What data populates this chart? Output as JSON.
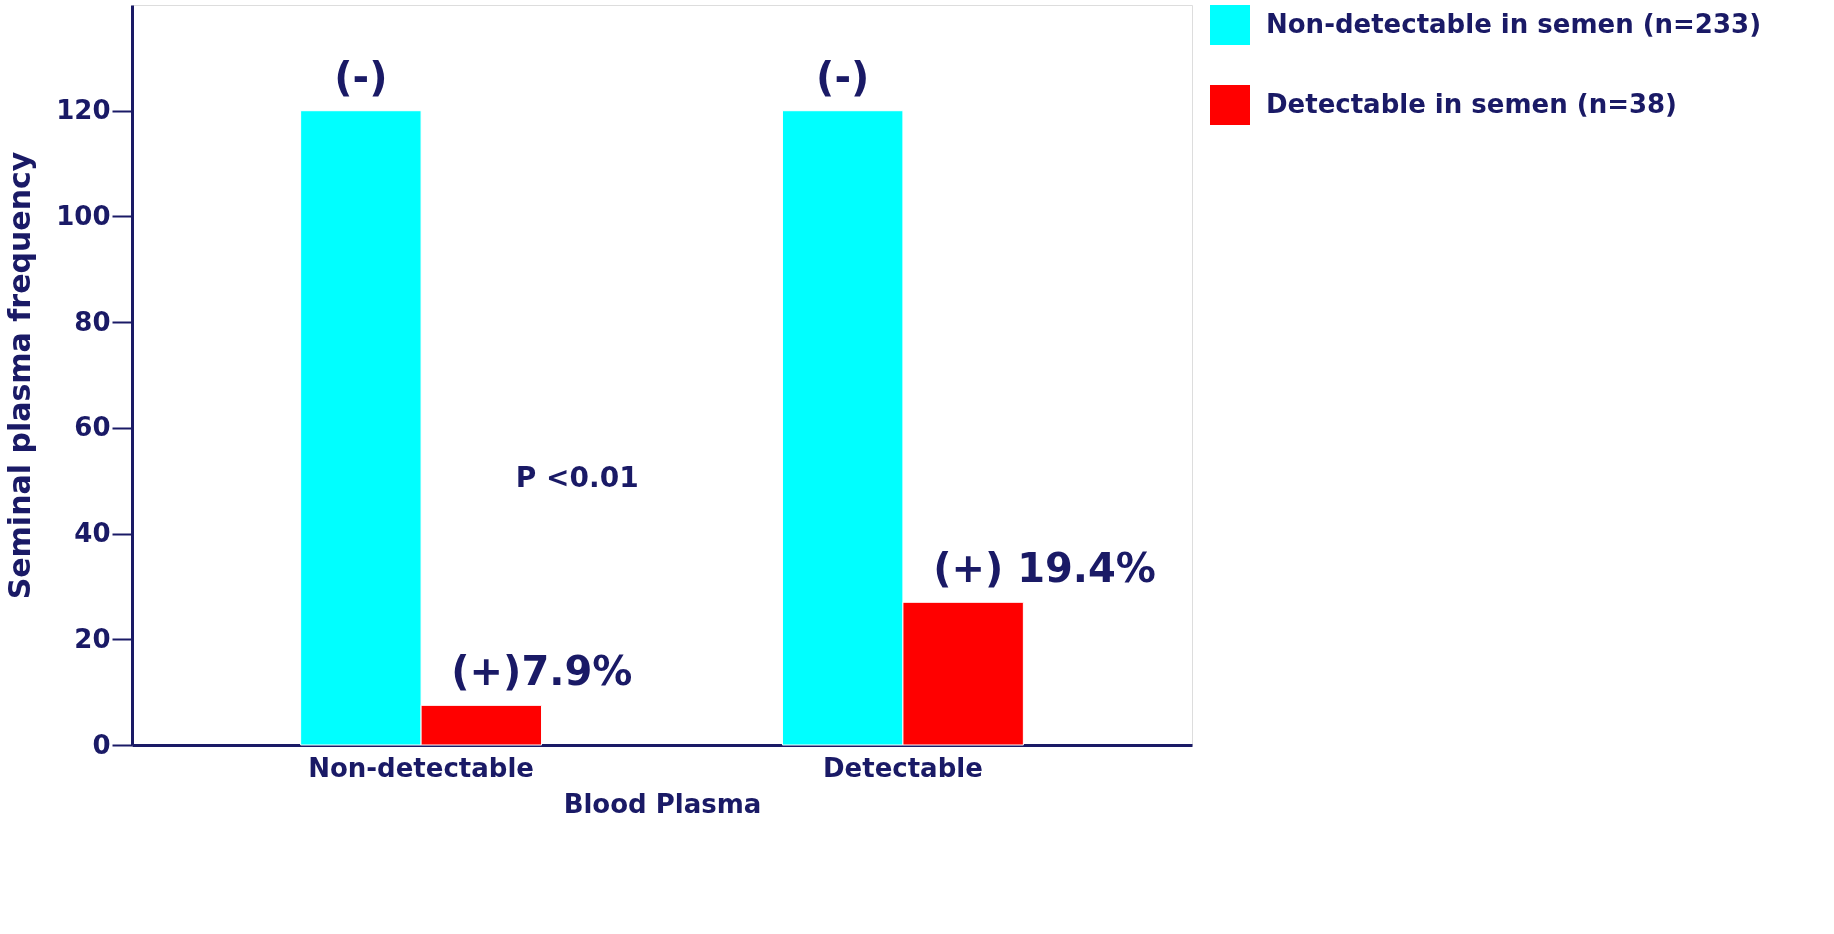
{
  "chart_data": {
    "type": "bar",
    "xlabel": "Blood Plasma",
    "ylabel": "Seminal plasma frequency",
    "categories": [
      "Non-detectable",
      "Detectable"
    ],
    "series": [
      {
        "name": "Non-detectable in semen (n=233)",
        "color": "#00ffff",
        "values": [
          120,
          120
        ]
      },
      {
        "name": "Detectable in semen (n=38)",
        "color": "#ff0000",
        "values": [
          7.5,
          27
        ]
      }
    ],
    "ylim": [
      0,
      140
    ],
    "yticks": [
      0,
      20,
      40,
      60,
      80,
      100,
      120
    ],
    "grid": false,
    "legend": "top right",
    "annotations": [
      {
        "text": "(-)",
        "x": "Non-detectable",
        "y": 120
      },
      {
        "text": "(-)",
        "x": "Detectable",
        "y": 120
      },
      {
        "text": "(+)7.9%",
        "x": "Non-detectable",
        "y": 7.5
      },
      {
        "text": "(+) 19.4%",
        "x": "Detectable",
        "y": 27
      },
      "P <0.01"
    ]
  }
}
